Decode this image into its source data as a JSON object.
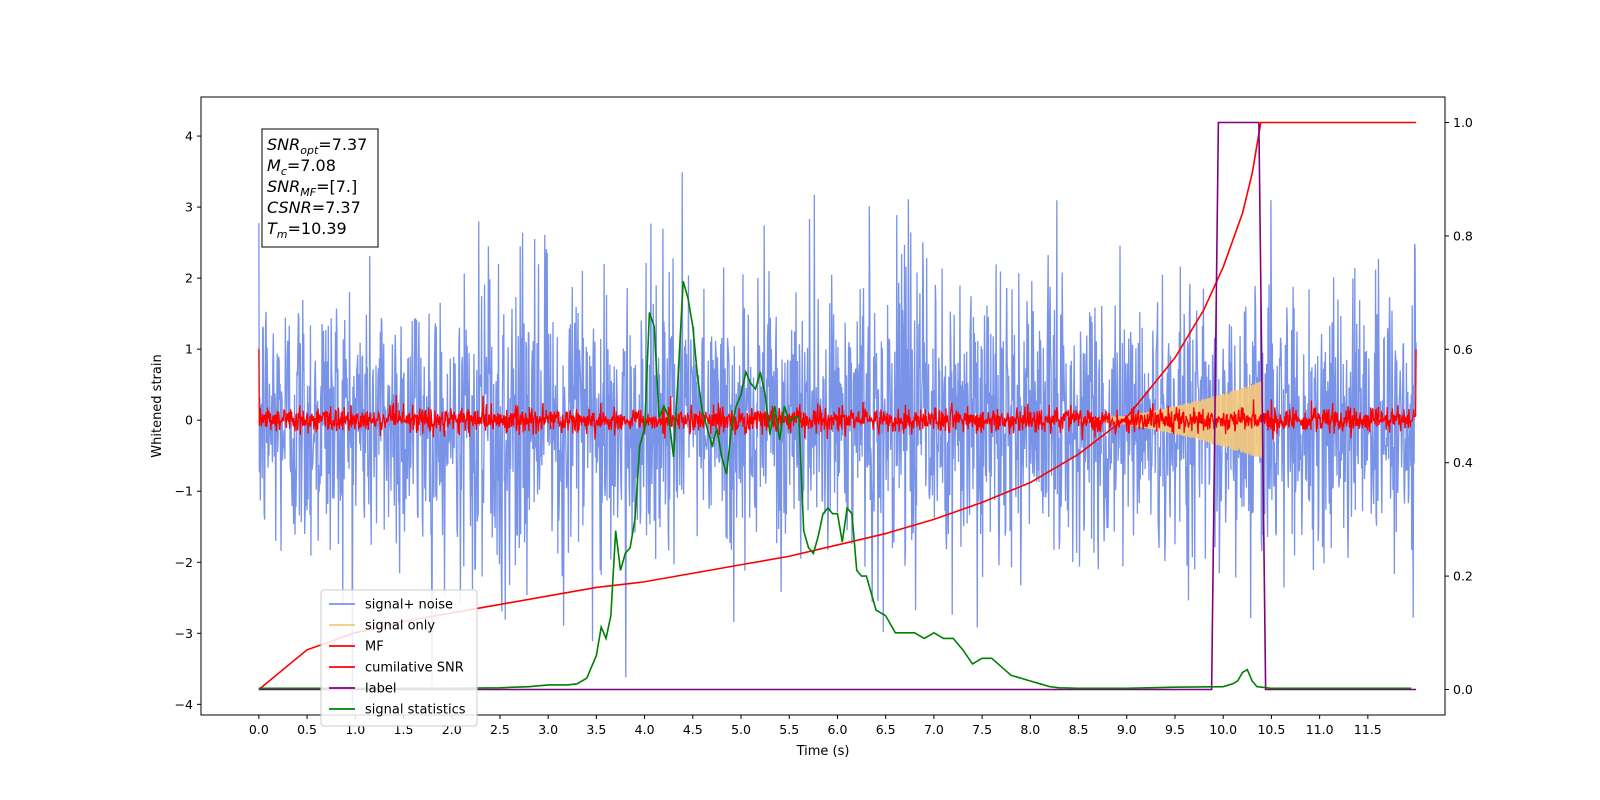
{
  "chart_data": {
    "type": "line",
    "title": "",
    "xlabel": "Time (s)",
    "ylabel": "Whitened strain",
    "xlim": [
      -0.6,
      12.3
    ],
    "ylim": [
      -4.15,
      4.55
    ],
    "y2lim": [
      -0.045,
      1.045
    ],
    "xticks": [
      0.0,
      0.5,
      1.0,
      1.5,
      2.0,
      2.5,
      3.0,
      3.5,
      4.0,
      4.5,
      5.0,
      5.5,
      6.0,
      6.5,
      7.0,
      7.5,
      8.0,
      8.5,
      9.0,
      9.5,
      10.0,
      10.5,
      11.0,
      11.5
    ],
    "xtick_labels": [
      "0.0",
      "0.5",
      "1.0",
      "1.5",
      "2.0",
      "2.5",
      "3.0",
      "3.5",
      "4.0",
      "4.5",
      "5.0",
      "5.5",
      "6.0",
      "6.5",
      "7.0",
      "7.5",
      "8.0",
      "8.5",
      "9.0",
      "9.5",
      "10.0",
      "10.5",
      "11.0",
      "11.5"
    ],
    "yticks": [
      4,
      3,
      2,
      1,
      0,
      -1,
      -2,
      -3,
      -4
    ],
    "ytick_labels": [
      "4",
      "3",
      "2",
      "1",
      "0",
      "−1",
      "−2",
      "−3",
      "−4"
    ],
    "y2ticks": [
      1.0,
      0.8,
      0.6,
      0.4,
      0.2,
      0.0
    ],
    "y2tick_labels": [
      "1.0",
      "0.8",
      "0.6",
      "0.4",
      "0.2",
      "0.0"
    ],
    "grid": false,
    "legend_position": "lower-left",
    "legend": [
      {
        "label": "signal+ noise",
        "color": "#7893e8"
      },
      {
        "label": "signal only",
        "color": "#f5c97a"
      },
      {
        "label": "MF",
        "color": "#ff0000"
      },
      {
        "label": "cumilative SNR",
        "color": "#ff0000"
      },
      {
        "label": "label",
        "color": "#800080"
      },
      {
        "label": "signal statistics",
        "color": "#008000"
      }
    ],
    "annotation": [
      {
        "base": "SNR",
        "sub": "opt",
        "rest": "=7.37"
      },
      {
        "base": "M",
        "sub": "c",
        "rest": "=7.08"
      },
      {
        "base": "SNR",
        "sub": "MF",
        "rest": "=[7.]"
      },
      {
        "base": "CSNR",
        "sub": "",
        "rest": "=7.37"
      },
      {
        "base": "T",
        "sub": "m",
        "rest": "=10.39"
      }
    ],
    "series": [
      {
        "name": "signal+ noise",
        "axis": "left",
        "color": "#7893e8",
        "kind": "noise",
        "x_start": 0.0,
        "x_end": 12.0,
        "sigma": 1.0,
        "max_abs": 4.15
      },
      {
        "name": "signal only",
        "axis": "left",
        "color": "#f5c97a",
        "kind": "chirp",
        "x_start": 8.5,
        "x_end": 10.4,
        "peak_amplitude": 0.55
      },
      {
        "name": "MF",
        "axis": "left",
        "color": "#ff0000",
        "kind": "noise",
        "x_start": 0.0,
        "x_end": 12.0,
        "sigma": 0.09,
        "max_abs": 0.5,
        "edge_value": 1.0
      },
      {
        "name": "cumilative SNR",
        "axis": "right",
        "color": "#ff0000",
        "kind": "line",
        "x": [
          0.0,
          0.5,
          1.0,
          1.5,
          2.0,
          2.5,
          3.0,
          3.5,
          4.0,
          4.5,
          5.0,
          5.5,
          6.0,
          6.5,
          7.0,
          7.5,
          8.0,
          8.5,
          9.0,
          9.5,
          9.8,
          10.0,
          10.2,
          10.3,
          10.39,
          10.45,
          11.0,
          11.5,
          12.0
        ],
        "y": [
          0.0,
          0.07,
          0.1,
          0.12,
          0.135,
          0.15,
          0.165,
          0.18,
          0.19,
          0.205,
          0.22,
          0.235,
          0.255,
          0.275,
          0.3,
          0.33,
          0.365,
          0.415,
          0.48,
          0.585,
          0.67,
          0.745,
          0.84,
          0.91,
          1.0,
          1.0,
          1.0,
          1.0,
          1.0
        ]
      },
      {
        "name": "label",
        "axis": "right",
        "color": "#800080",
        "kind": "line",
        "x": [
          0.0,
          9.88,
          9.95,
          10.37,
          10.44,
          12.0
        ],
        "y": [
          0.0,
          0.0,
          1.0,
          1.0,
          0.0,
          0.0
        ]
      },
      {
        "name": "signal statistics",
        "axis": "right",
        "color": "#008000",
        "kind": "line",
        "x": [
          0.0,
          0.5,
          1.0,
          1.5,
          2.0,
          2.5,
          2.8,
          3.0,
          3.2,
          3.3,
          3.4,
          3.5,
          3.55,
          3.6,
          3.65,
          3.7,
          3.75,
          3.8,
          3.85,
          3.9,
          3.95,
          4.0,
          4.05,
          4.1,
          4.15,
          4.2,
          4.25,
          4.3,
          4.35,
          4.4,
          4.45,
          4.5,
          4.55,
          4.6,
          4.65,
          4.7,
          4.75,
          4.8,
          4.85,
          4.9,
          4.95,
          5.0,
          5.05,
          5.1,
          5.15,
          5.2,
          5.25,
          5.3,
          5.35,
          5.4,
          5.45,
          5.5,
          5.55,
          5.6,
          5.65,
          5.7,
          5.75,
          5.8,
          5.85,
          5.9,
          5.95,
          6.0,
          6.05,
          6.1,
          6.15,
          6.2,
          6.25,
          6.3,
          6.35,
          6.4,
          6.5,
          6.6,
          6.7,
          6.8,
          6.9,
          7.0,
          7.1,
          7.2,
          7.3,
          7.4,
          7.5,
          7.6,
          7.7,
          7.8,
          7.9,
          8.0,
          8.1,
          8.2,
          8.3,
          8.5,
          8.7,
          9.0,
          9.5,
          10.0,
          10.1,
          10.15,
          10.2,
          10.25,
          10.3,
          10.35,
          10.5,
          11.0,
          11.5,
          11.95
        ],
        "y": [
          0.002,
          0.002,
          0.002,
          0.002,
          0.002,
          0.003,
          0.005,
          0.008,
          0.008,
          0.01,
          0.02,
          0.06,
          0.11,
          0.09,
          0.13,
          0.28,
          0.21,
          0.24,
          0.25,
          0.3,
          0.43,
          0.46,
          0.665,
          0.64,
          0.48,
          0.5,
          0.48,
          0.41,
          0.56,
          0.72,
          0.69,
          0.64,
          0.55,
          0.49,
          0.46,
          0.43,
          0.46,
          0.41,
          0.38,
          0.46,
          0.5,
          0.52,
          0.56,
          0.54,
          0.53,
          0.56,
          0.52,
          0.45,
          0.5,
          0.44,
          0.5,
          0.47,
          0.48,
          0.48,
          0.28,
          0.25,
          0.24,
          0.27,
          0.31,
          0.32,
          0.31,
          0.31,
          0.26,
          0.32,
          0.31,
          0.21,
          0.2,
          0.2,
          0.17,
          0.14,
          0.13,
          0.1,
          0.1,
          0.1,
          0.09,
          0.1,
          0.09,
          0.09,
          0.07,
          0.045,
          0.055,
          0.055,
          0.04,
          0.025,
          0.02,
          0.015,
          0.01,
          0.005,
          0.003,
          0.002,
          0.002,
          0.002,
          0.004,
          0.005,
          0.01,
          0.015,
          0.03,
          0.035,
          0.015,
          0.005,
          0.002,
          0.002,
          0.002,
          0.002
        ]
      }
    ]
  }
}
